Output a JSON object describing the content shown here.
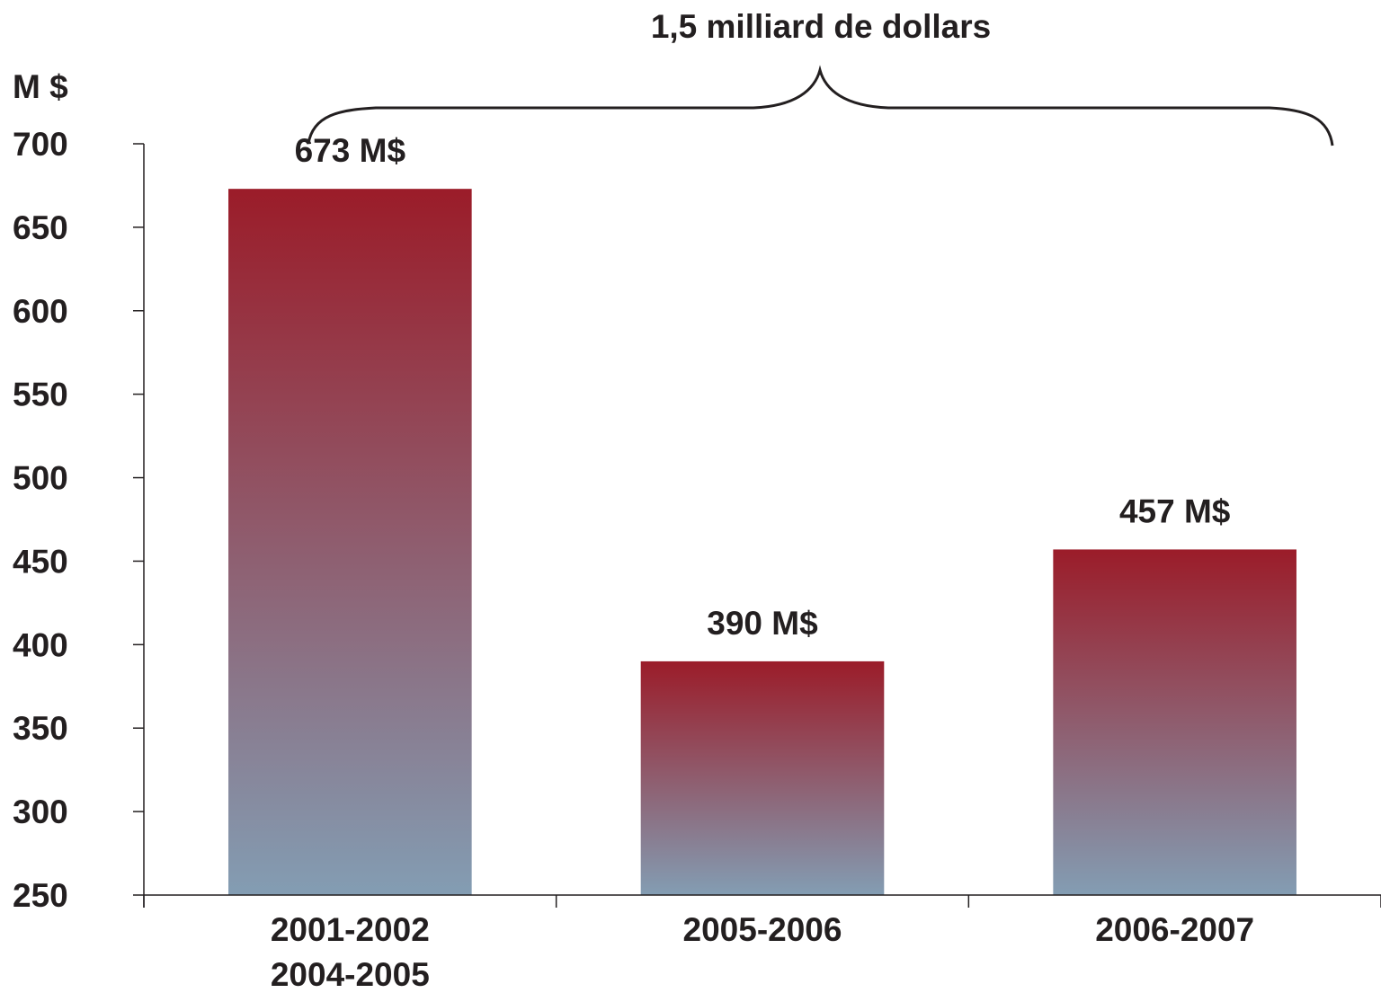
{
  "chart_data": {
    "type": "bar",
    "title": "",
    "annotation": "1,5 milliard de dollars",
    "ylabel": "M $",
    "xlabel": "",
    "ylim": [
      250,
      700
    ],
    "yticks": [
      250,
      300,
      350,
      400,
      450,
      500,
      550,
      600,
      650,
      700
    ],
    "categories": [
      [
        "2001-2002",
        "2004-2005"
      ],
      [
        "2005-2006"
      ],
      [
        "2006-2007"
      ]
    ],
    "values": [
      673,
      390,
      457
    ],
    "data_labels": [
      "673 M$",
      "390 M$",
      "457 M$"
    ],
    "grid": false,
    "legend": "none",
    "colors": {
      "bar_top": "#9b1c29",
      "bar_bottom": "#839db3",
      "text": "#231f20",
      "axis": "#231f20"
    }
  }
}
